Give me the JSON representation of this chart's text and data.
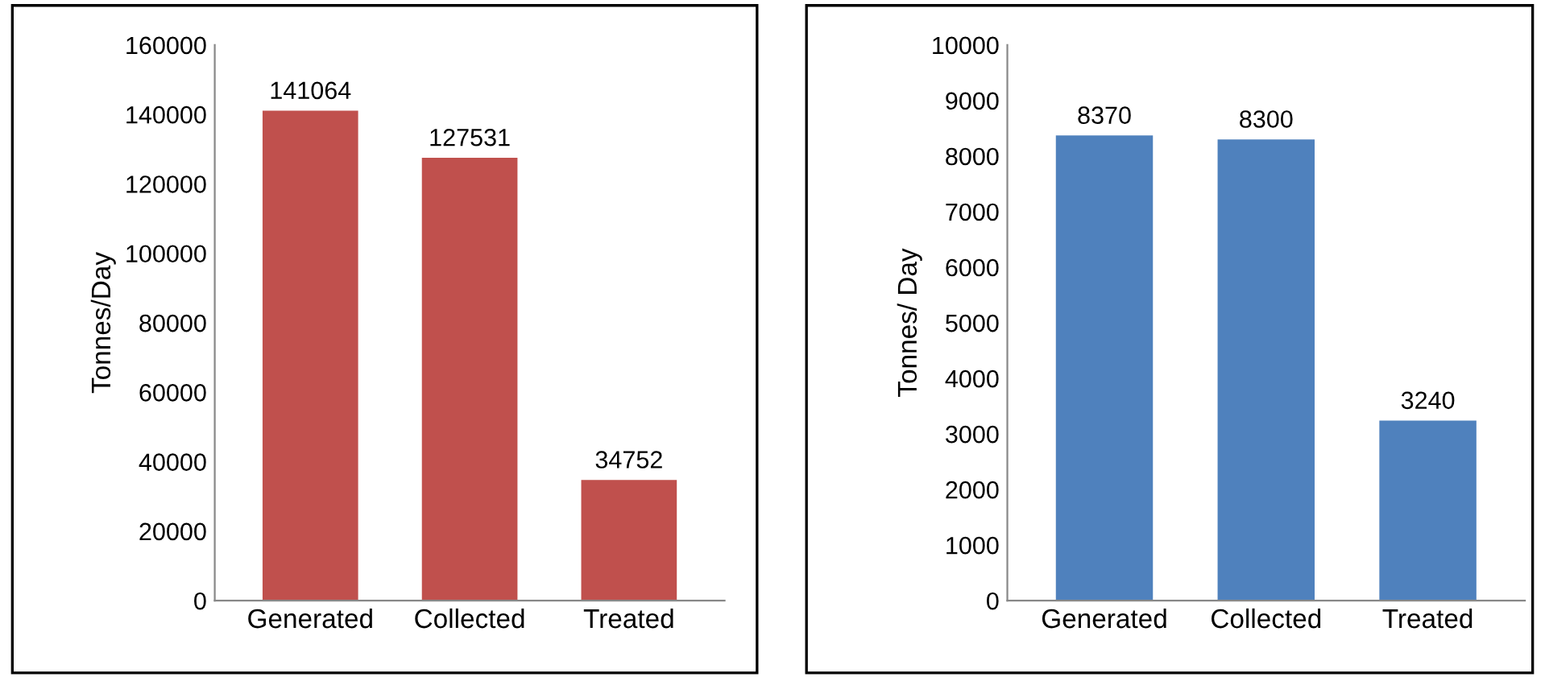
{
  "chart_data": [
    {
      "type": "bar",
      "categories": [
        "Generated",
        "Collected",
        "Treated"
      ],
      "values": [
        141064,
        127531,
        34752
      ],
      "color": "#c0504d",
      "ylabel": "Tonnes/Day",
      "ylim": [
        0,
        160000
      ],
      "yticks": [
        0,
        20000,
        40000,
        60000,
        80000,
        100000,
        120000,
        140000,
        160000
      ],
      "data_labels": true,
      "grid": false,
      "legend": false
    },
    {
      "type": "bar",
      "categories": [
        "Generated",
        "Collected",
        "Treated"
      ],
      "values": [
        8370,
        8300,
        3240
      ],
      "color": "#4f81bd",
      "ylabel": "Tonnes/ Day",
      "ylim": [
        0,
        10000
      ],
      "yticks": [
        0,
        1000,
        2000,
        3000,
        4000,
        5000,
        6000,
        7000,
        8000,
        9000,
        10000
      ],
      "data_labels": true,
      "grid": false,
      "legend": false
    }
  ]
}
